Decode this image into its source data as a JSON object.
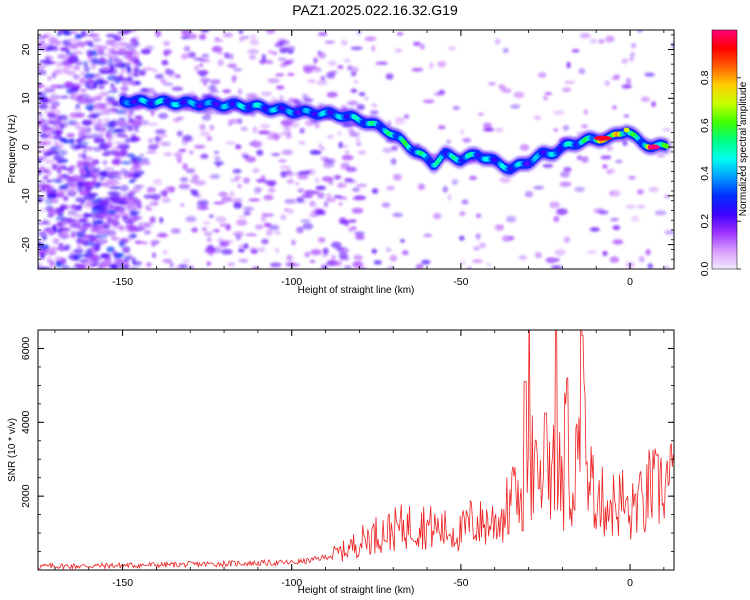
{
  "title": "PAZ1.2025.022.16.32.G19",
  "chart_data": [
    {
      "type": "heatmap",
      "xlabel": "Height of straight line (km)",
      "ylabel": "Frequency (Hz)",
      "xlim": [
        -175,
        13
      ],
      "ylim": [
        -25,
        24
      ],
      "xticks": [
        "-150",
        "-100",
        "-50",
        "0"
      ],
      "yticks": [
        "20",
        "10",
        "0",
        "-10",
        "-20"
      ],
      "colorbar": {
        "label": "Normalized spectral amplitude",
        "range": [
          0,
          1
        ],
        "ticks": [
          "0.0",
          "0.2",
          "0.4",
          "0.6",
          "0.8"
        ],
        "colors": [
          "#f4e8ff",
          "#d79bff",
          "#9b30ff",
          "#3a00ff",
          "#0030ff",
          "#00a0ff",
          "#00ffee",
          "#00ff80",
          "#40ff00",
          "#c8ff00",
          "#ffd000",
          "#ff6000",
          "#ff0000",
          "#ff0077"
        ]
      },
      "ridge": [
        {
          "x": -150,
          "y": 9.5,
          "a": 0.35
        },
        {
          "x": -145,
          "y": 9.3,
          "a": 0.45
        },
        {
          "x": -138,
          "y": 9.2,
          "a": 0.5
        },
        {
          "x": -132,
          "y": 9.0,
          "a": 0.45
        },
        {
          "x": -125,
          "y": 8.8,
          "a": 0.4
        },
        {
          "x": -118,
          "y": 8.6,
          "a": 0.45
        },
        {
          "x": -112,
          "y": 8.4,
          "a": 0.5
        },
        {
          "x": -105,
          "y": 7.8,
          "a": 0.45
        },
        {
          "x": -98,
          "y": 7.2,
          "a": 0.4
        },
        {
          "x": -92,
          "y": 7.0,
          "a": 0.45
        },
        {
          "x": -85,
          "y": 6.5,
          "a": 0.45
        },
        {
          "x": -78,
          "y": 5.2,
          "a": 0.55
        },
        {
          "x": -72,
          "y": 3.5,
          "a": 0.55
        },
        {
          "x": -67,
          "y": 1.0,
          "a": 0.6
        },
        {
          "x": -62,
          "y": -1.5,
          "a": 0.55
        },
        {
          "x": -58,
          "y": -3.5,
          "a": 0.55
        },
        {
          "x": -55,
          "y": -1.5,
          "a": 0.5
        },
        {
          "x": -50,
          "y": -2.5,
          "a": 0.55
        },
        {
          "x": -45,
          "y": -1.5,
          "a": 0.5
        },
        {
          "x": -40,
          "y": -3.0,
          "a": 0.45
        },
        {
          "x": -35,
          "y": -4.5,
          "a": 0.5
        },
        {
          "x": -30,
          "y": -3.0,
          "a": 0.4
        },
        {
          "x": -26,
          "y": -1.5,
          "a": 0.45
        },
        {
          "x": -22,
          "y": -1.0,
          "a": 0.45
        },
        {
          "x": -18,
          "y": 0.5,
          "a": 0.5
        },
        {
          "x": -12,
          "y": 1.5,
          "a": 0.6
        },
        {
          "x": -6,
          "y": 1.8,
          "a": 0.95
        },
        {
          "x": -1,
          "y": 3.5,
          "a": 0.65
        },
        {
          "x": 3,
          "y": 1.0,
          "a": 0.55
        },
        {
          "x": 7,
          "y": 0.0,
          "a": 1.0
        },
        {
          "x": 11,
          "y": 0.3,
          "a": 0.6
        }
      ]
    },
    {
      "type": "line",
      "xlabel": "Height of straight line (km)",
      "ylabel": "SNR (10 * v/v)",
      "xlim": [
        -175,
        13
      ],
      "ylim": [
        0,
        6500
      ],
      "xticks": [
        "-150",
        "-100",
        "-50",
        "0"
      ],
      "yticks": [
        "2000",
        "4000",
        "6000"
      ],
      "series": [
        {
          "color": "#ee2222",
          "x": [
            -175,
            -160,
            -145,
            -130,
            -115,
            -100,
            -95,
            -90,
            -85,
            -80,
            -77,
            -74,
            -71,
            -68,
            -65,
            -62,
            -59,
            -56,
            -53,
            -50,
            -47,
            -44,
            -41,
            -38,
            -36,
            -34,
            -32,
            -30,
            -28,
            -26,
            -24,
            -22,
            -20,
            -18,
            -16,
            -14,
            -12,
            -10,
            -8,
            -6,
            -4,
            -2,
            0,
            2,
            4,
            6,
            8,
            10,
            13
          ],
          "y": [
            100,
            110,
            130,
            150,
            180,
            200,
            250,
            350,
            500,
            750,
            900,
            1000,
            1050,
            1150,
            1200,
            1250,
            1150,
            1100,
            1050,
            1000,
            1300,
            1250,
            1300,
            1400,
            1700,
            1900,
            2100,
            3100,
            2400,
            2300,
            2700,
            3500,
            1900,
            2100,
            2800,
            4000,
            2400,
            2100,
            1800,
            1800,
            1750,
            1900,
            1300,
            2000,
            1600,
            2300,
            2100,
            2400,
            2350
          ]
        }
      ]
    }
  ]
}
